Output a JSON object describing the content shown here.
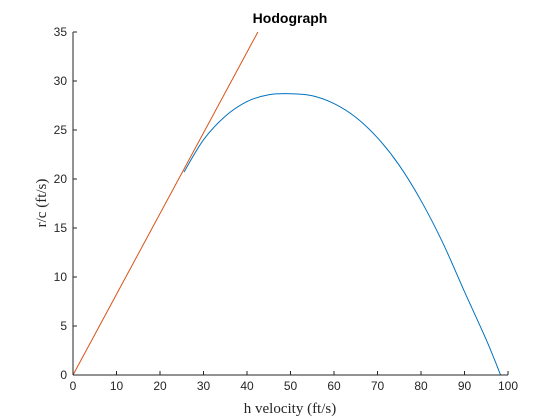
{
  "chart_data": {
    "type": "line",
    "title": "Hodograph",
    "xlabel": "h velocity (ft/s)",
    "ylabel": "r/c (ft/s)",
    "xlim": [
      0,
      100
    ],
    "ylim": [
      0,
      35
    ],
    "xticks": [
      0,
      10,
      20,
      30,
      40,
      50,
      60,
      70,
      80,
      90,
      100
    ],
    "yticks": [
      0,
      5,
      10,
      15,
      20,
      25,
      30,
      35
    ],
    "grid": false,
    "series": [
      {
        "color": "#0072BD",
        "x": [
          25.5,
          30,
          35,
          40,
          45,
          50,
          55,
          60,
          65,
          70,
          75,
          80,
          85,
          90,
          95,
          98.3
        ],
        "y": [
          20.7,
          24.0,
          26.4,
          27.9,
          28.6,
          28.7,
          28.5,
          27.7,
          26.3,
          24.2,
          21.4,
          17.8,
          13.5,
          8.5,
          3.6,
          0
        ]
      },
      {
        "color": "#D95319",
        "x": [
          0,
          42.5
        ],
        "y": [
          0,
          35
        ]
      }
    ]
  }
}
